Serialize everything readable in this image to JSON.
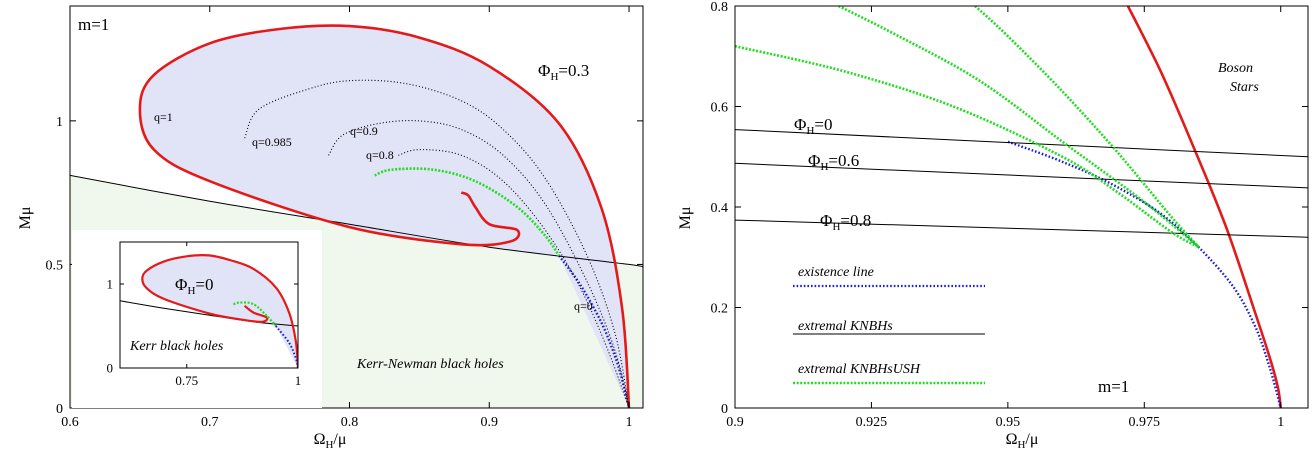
{
  "chart_data": [
    {
      "type": "line",
      "xlabel": "Ω_H/μ",
      "ylabel": "Mμ",
      "xlim": [
        0.6,
        1.01
      ],
      "ylim": [
        0,
        1.4
      ],
      "xticks": [
        "0.6",
        "0.7",
        "0.8",
        "0.9",
        "1"
      ],
      "yticks": [
        "0",
        "0.5",
        "1"
      ],
      "annotations": {
        "m": "m=1",
        "phi": "Φ_H=0.3",
        "kn": "Kerr-Newman black holes",
        "q1": "q=1",
        "q0985": "q=0.985",
        "q09": "q=0.9",
        "q08": "q=0.8",
        "q0": "q=0"
      },
      "series": [
        {
          "role": "existence-line",
          "color": "#1b1bdc",
          "style": "dotted",
          "x": [
            0.95,
            0.965,
            0.98,
            0.99,
            0.995,
            1.0
          ],
          "y": [
            0.53,
            0.43,
            0.3,
            0.18,
            0.1,
            0.0
          ]
        },
        {
          "role": "extremal-KN",
          "color": "#000000",
          "style": "solid",
          "x": [
            0.6,
            0.7,
            0.8,
            0.9,
            1.0,
            1.01
          ],
          "y": [
            0.81,
            0.72,
            0.64,
            0.56,
            0.5,
            0.49
          ]
        },
        {
          "role": "solutions-q1",
          "color": "#e41a1a",
          "style": "solid",
          "x": [
            0.88,
            0.885,
            0.89,
            0.9,
            0.92,
            0.915,
            0.88,
            0.8,
            0.7,
            0.66,
            0.65,
            0.66,
            0.7,
            0.75,
            0.8,
            0.85,
            0.9,
            0.95,
            0.98,
            0.995,
            1.0
          ],
          "y": [
            0.75,
            0.74,
            0.7,
            0.64,
            0.62,
            0.58,
            0.57,
            0.63,
            0.79,
            0.9,
            1.04,
            1.16,
            1.27,
            1.32,
            1.33,
            1.29,
            1.19,
            0.99,
            0.7,
            0.35,
            0.0
          ]
        },
        {
          "role": "solutions-q0985",
          "color": "#000000",
          "style": "dotted",
          "x": [
            0.725,
            0.735,
            0.77,
            0.8,
            0.84,
            0.88,
            0.91,
            0.94,
            0.97,
            0.99,
            1.0
          ],
          "y": [
            0.94,
            1.04,
            1.11,
            1.14,
            1.13,
            1.07,
            0.97,
            0.8,
            0.53,
            0.26,
            0.0
          ]
        },
        {
          "role": "solutions-q09",
          "color": "#000000",
          "style": "dotted",
          "x": [
            0.785,
            0.795,
            0.82,
            0.85,
            0.88,
            0.91,
            0.94,
            0.97,
            0.99,
            1.0
          ],
          "y": [
            0.88,
            0.95,
            0.99,
            1.0,
            0.97,
            0.88,
            0.71,
            0.44,
            0.2,
            0.0
          ]
        },
        {
          "role": "solutions-q08",
          "color": "#000000",
          "style": "dotted",
          "x": [
            0.835,
            0.85,
            0.88,
            0.91,
            0.94,
            0.965,
            0.985,
            1.0
          ],
          "y": [
            0.88,
            0.9,
            0.88,
            0.79,
            0.62,
            0.42,
            0.2,
            0.0
          ]
        },
        {
          "role": "extremal-KNBHsUSH",
          "color": "#22dd22",
          "style": "dotted",
          "x": [
            0.818,
            0.83,
            0.86,
            0.89,
            0.92,
            0.94,
            0.95
          ],
          "y": [
            0.81,
            0.83,
            0.83,
            0.79,
            0.7,
            0.6,
            0.53
          ]
        }
      ],
      "inset": {
        "xlabel_ticks": [
          "0.75",
          "1"
        ],
        "yticks": [
          "0",
          "1"
        ],
        "xlim": [
          0.6,
          1.0
        ],
        "ylim": [
          0,
          1.5
        ],
        "phi": "Φ_H=0",
        "kerr": "Kerr black holes",
        "series": [
          {
            "role": "extremal-Kerr",
            "color": "#000000",
            "style": "solid",
            "x": [
              0.6,
              0.7,
              0.8,
              0.9,
              1.0
            ],
            "y": [
              0.8,
              0.71,
              0.63,
              0.55,
              0.5
            ]
          },
          {
            "role": "solutions",
            "color": "#e41a1a",
            "style": "solid",
            "x": [
              0.88,
              0.9,
              0.93,
              0.92,
              0.88,
              0.8,
              0.7,
              0.66,
              0.65,
              0.66,
              0.7,
              0.75,
              0.8,
              0.85,
              0.9,
              0.95,
              0.98,
              0.995,
              1.0
            ],
            "y": [
              0.74,
              0.66,
              0.6,
              0.55,
              0.57,
              0.65,
              0.82,
              0.95,
              1.06,
              1.16,
              1.27,
              1.33,
              1.34,
              1.28,
              1.18,
              0.96,
              0.66,
              0.32,
              0.0
            ]
          },
          {
            "role": "existence-line",
            "color": "#1b1bdc",
            "style": "dotted",
            "x": [
              0.95,
              0.98,
              0.995,
              1.0
            ],
            "y": [
              0.5,
              0.3,
              0.12,
              0.0
            ]
          },
          {
            "role": "extremal-USH",
            "color": "#22dd22",
            "style": "dotted",
            "x": [
              0.855,
              0.87,
              0.9,
              0.93,
              0.95
            ],
            "y": [
              0.76,
              0.78,
              0.76,
              0.62,
              0.5
            ]
          }
        ]
      }
    },
    {
      "type": "line",
      "xlabel": "Ω_H/μ",
      "ylabel": "Mμ",
      "xlim": [
        0.9,
        1.005
      ],
      "ylim": [
        0,
        0.8
      ],
      "xticks": [
        "0.9",
        "0.925",
        "0.95",
        "0.975",
        "1"
      ],
      "yticks": [
        "0",
        "0.2",
        "0.4",
        "0.6",
        "0.8"
      ],
      "annotations": {
        "boson": [
          "Boson",
          "Stars"
        ],
        "m": "m=1",
        "phi0": "Φ_H=0",
        "phi06": "Φ_H=0.6",
        "phi08": "Φ_H=0.8"
      },
      "legend": {
        "placement": "bottom-left",
        "items": [
          "existence line",
          "extremal KNBHs",
          "extremal KNBHsUSH"
        ]
      },
      "series": [
        {
          "role": "boson-stars",
          "color": "#e41a1a",
          "style": "solid",
          "x": [
            0.972,
            0.978,
            0.984,
            0.99,
            0.995,
            0.998,
            0.9995,
            1.0
          ],
          "y": [
            0.8,
            0.67,
            0.52,
            0.36,
            0.2,
            0.1,
            0.04,
            0.0
          ]
        },
        {
          "role": "existence-line",
          "color": "#1b1bdc",
          "style": "dotted",
          "x": [
            0.95,
            0.96,
            0.97,
            0.98,
            0.99,
            0.995,
            0.998,
            1.0
          ],
          "y": [
            0.53,
            0.49,
            0.44,
            0.37,
            0.26,
            0.17,
            0.08,
            0.0
          ]
        },
        {
          "role": "extremal-KNBHs",
          "color": "#000000",
          "style": "solid",
          "x": [
            0.9,
            1.005
          ],
          "y": [
            0.554,
            0.5
          ]
        },
        {
          "role": "extremal-KNBHs",
          "color": "#000000",
          "style": "solid",
          "x": [
            0.9,
            1.005
          ],
          "y": [
            0.487,
            0.438
          ]
        },
        {
          "role": "extremal-KNBHs",
          "color": "#000000",
          "style": "solid",
          "x": [
            0.9,
            1.005
          ],
          "y": [
            0.374,
            0.34
          ]
        },
        {
          "role": "extremal-KNBHsUSH",
          "color": "#22dd22",
          "style": "dotted",
          "x": [
            0.9,
            0.92,
            0.94,
            0.96,
            0.97,
            0.98,
            0.985
          ],
          "y": [
            0.72,
            0.67,
            0.6,
            0.5,
            0.43,
            0.35,
            0.32
          ]
        },
        {
          "role": "extremal-KNBHsUSH",
          "color": "#22dd22",
          "style": "dotted",
          "x": [
            0.919,
            0.93,
            0.945,
            0.96,
            0.975,
            0.985
          ],
          "y": [
            0.8,
            0.74,
            0.65,
            0.53,
            0.41,
            0.32
          ]
        },
        {
          "role": "extremal-KNBHsUSH",
          "color": "#22dd22",
          "style": "dotted",
          "x": [
            0.944,
            0.95,
            0.96,
            0.97,
            0.98,
            0.985
          ],
          "y": [
            0.8,
            0.74,
            0.63,
            0.51,
            0.38,
            0.32
          ]
        }
      ]
    }
  ]
}
